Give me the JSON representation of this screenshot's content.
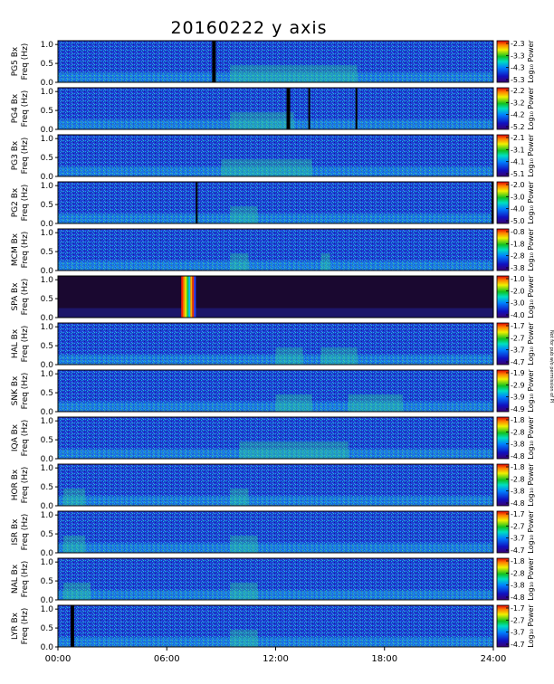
{
  "chart_data": {
    "type": "heatmap",
    "title": "20160222 y axis",
    "x_ticks": [
      "00:00",
      "06:00",
      "12:00",
      "18:00",
      "24:00"
    ],
    "xlim_hours": [
      0,
      24
    ],
    "y_ticks": [
      "0.0",
      "0.5",
      "1.0"
    ],
    "ylim_hz": [
      0,
      1.1
    ],
    "panel_ylabel_suffix": "Bx",
    "panel_ylabel_units": "Freq (Hz)",
    "colorbar_label": "Log₁₀ Power",
    "side_note": "Not for pub w/o permission of PI",
    "panels": [
      {
        "station": "PG5",
        "colorbar_ticks": [
          "-2.3",
          "-3.3",
          "-4.3",
          "-5.3"
        ],
        "gaps_hours": [
          [
            8.5,
            8.7
          ]
        ],
        "bright_hours": [
          [
            9.5,
            16.5
          ]
        ]
      },
      {
        "station": "PG4",
        "colorbar_ticks": [
          "-2.2",
          "-3.2",
          "-4.2",
          "-5.2"
        ],
        "gaps_hours": [
          [
            12.6,
            12.8
          ],
          [
            13.8,
            13.9
          ],
          [
            16.4,
            16.5
          ]
        ],
        "bright_hours": [
          [
            9.5,
            13
          ]
        ]
      },
      {
        "station": "PG3",
        "colorbar_ticks": [
          "-2.1",
          "-3.1",
          "-4.1",
          "-5.1"
        ],
        "gaps_hours": [],
        "bright_hours": [
          [
            9,
            14
          ]
        ]
      },
      {
        "station": "PG2",
        "colorbar_ticks": [
          "-2.0",
          "-3.0",
          "-4.0",
          "-5.0"
        ],
        "gaps_hours": [
          [
            7.6,
            7.7
          ],
          [
            23.9,
            24
          ]
        ],
        "bright_hours": [
          [
            9.5,
            11
          ]
        ]
      },
      {
        "station": "MCM",
        "colorbar_ticks": [
          "-0.8",
          "-1.8",
          "-2.8",
          "-3.8"
        ],
        "gaps_hours": [],
        "bright_hours": [
          [
            9.5,
            10.5
          ],
          [
            14.5,
            15
          ]
        ]
      },
      {
        "station": "SPA",
        "colorbar_ticks": [
          "-1.0",
          "-2.0",
          "-3.0",
          "-4.0"
        ],
        "gaps_hours": [],
        "bright_hours": [
          [
            6.8,
            7.6
          ]
        ]
      },
      {
        "station": "HAL",
        "colorbar_ticks": [
          "-1.7",
          "-2.7",
          "-3.7",
          "-4.7"
        ],
        "gaps_hours": [],
        "bright_hours": [
          [
            12,
            13.5
          ],
          [
            14.5,
            16.5
          ]
        ]
      },
      {
        "station": "SNK",
        "colorbar_ticks": [
          "-1.9",
          "-2.9",
          "-3.9",
          "-4.9"
        ],
        "gaps_hours": [],
        "bright_hours": [
          [
            12,
            14
          ],
          [
            16,
            19
          ]
        ]
      },
      {
        "station": "IQA",
        "colorbar_ticks": [
          "-1.8",
          "-2.8",
          "-3.8",
          "-4.8"
        ],
        "gaps_hours": [],
        "bright_hours": [
          [
            10,
            16
          ]
        ]
      },
      {
        "station": "HOR",
        "colorbar_ticks": [
          "-1.8",
          "-2.8",
          "-3.8",
          "-4.8"
        ],
        "gaps_hours": [],
        "bright_hours": [
          [
            0.3,
            1.5
          ],
          [
            9.5,
            10.5
          ]
        ]
      },
      {
        "station": "ISR",
        "colorbar_ticks": [
          "-1.7",
          "-2.7",
          "-3.7",
          "-4.7"
        ],
        "gaps_hours": [],
        "bright_hours": [
          [
            0.3,
            1.5
          ],
          [
            9.5,
            11
          ]
        ]
      },
      {
        "station": "NAL",
        "colorbar_ticks": [
          "-1.8",
          "-2.8",
          "-3.8",
          "-4.8"
        ],
        "gaps_hours": [],
        "bright_hours": [
          [
            0.3,
            1.8
          ],
          [
            9.5,
            11
          ]
        ]
      },
      {
        "station": "LYR",
        "colorbar_ticks": [
          "-1.7",
          "-2.7",
          "-3.7",
          "-4.7"
        ],
        "gaps_hours": [
          [
            0.7,
            0.9
          ]
        ],
        "bright_hours": [
          [
            9.5,
            11
          ]
        ]
      }
    ]
  }
}
